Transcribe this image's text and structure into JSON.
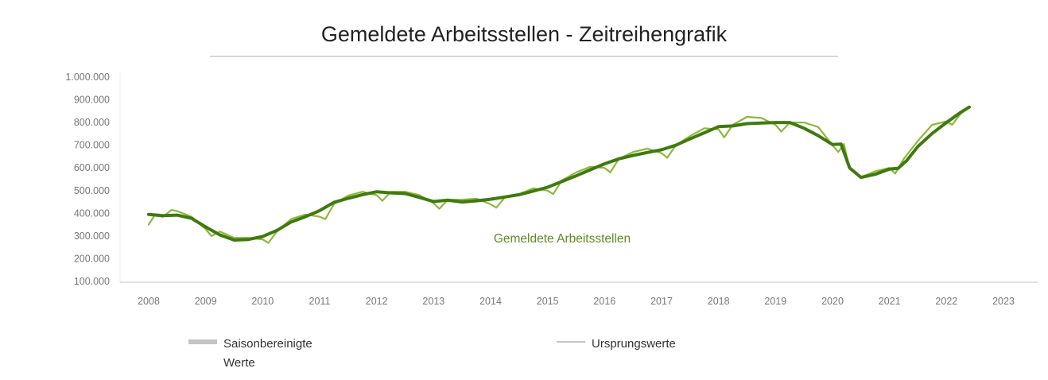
{
  "chart_data": {
    "type": "line",
    "title": "Gemeldete Arbeitsstellen - Zeitreihengrafik",
    "series_label": "Gemeldete Arbeitsstellen",
    "xlabel": "",
    "ylabel": "",
    "xlim": [
      2008,
      2023
    ],
    "ylim": [
      100000,
      1000000
    ],
    "x_ticks": [
      "2008",
      "2009",
      "2010",
      "2011",
      "2012",
      "2013",
      "2014",
      "2015",
      "2016",
      "2017",
      "2018",
      "2019",
      "2020",
      "2021",
      "2022",
      "2023"
    ],
    "y_ticks": [
      "1.000.000",
      "900.000",
      "800.000",
      "700.000",
      "600.000",
      "500.000",
      "400.000",
      "300.000",
      "200.000",
      "100.000"
    ],
    "y_tick_values": [
      1000000,
      900000,
      800000,
      700000,
      600000,
      500000,
      400000,
      300000,
      200000,
      100000
    ],
    "legend_position": "bottom",
    "series": [
      {
        "name": "Saisonbereinigte Werte",
        "color": "#3f7a0f",
        "x": [
          2008.0,
          2008.25,
          2008.5,
          2008.75,
          2009.0,
          2009.25,
          2009.5,
          2009.75,
          2010.0,
          2010.25,
          2010.5,
          2010.75,
          2011.0,
          2011.25,
          2011.5,
          2011.75,
          2012.0,
          2012.25,
          2012.5,
          2012.75,
          2013.0,
          2013.25,
          2013.5,
          2013.75,
          2014.0,
          2014.25,
          2014.5,
          2014.75,
          2015.0,
          2015.25,
          2015.5,
          2015.75,
          2016.0,
          2016.25,
          2016.5,
          2016.75,
          2017.0,
          2017.25,
          2017.5,
          2017.75,
          2018.0,
          2018.25,
          2018.5,
          2018.75,
          2019.0,
          2019.25,
          2019.5,
          2019.75,
          2020.0,
          2020.15,
          2020.3,
          2020.5,
          2020.75,
          2021.0,
          2021.15,
          2021.3,
          2021.5,
          2021.75,
          2022.0,
          2022.25,
          2022.4
        ],
        "values": [
          395000,
          390000,
          392000,
          378000,
          340000,
          305000,
          282000,
          285000,
          298000,
          325000,
          362000,
          385000,
          412000,
          448000,
          466000,
          482000,
          495000,
          490000,
          487000,
          470000,
          452000,
          458000,
          450000,
          455000,
          462000,
          472000,
          482000,
          498000,
          515000,
          540000,
          565000,
          592000,
          618000,
          640000,
          655000,
          668000,
          680000,
          700000,
          728000,
          755000,
          782000,
          785000,
          795000,
          798000,
          800000,
          800000,
          775000,
          742000,
          703000,
          705000,
          600000,
          558000,
          572000,
          595000,
          598000,
          632000,
          695000,
          752000,
          800000,
          845000,
          868000
        ]
      },
      {
        "name": "Ursprungswerte",
        "color": "#8cb83c",
        "x": [
          2008.0,
          2008.1,
          2008.25,
          2008.4,
          2008.5,
          2008.75,
          2009.0,
          2009.1,
          2009.25,
          2009.5,
          2009.75,
          2010.0,
          2010.1,
          2010.25,
          2010.5,
          2010.75,
          2011.0,
          2011.1,
          2011.25,
          2011.5,
          2011.75,
          2012.0,
          2012.1,
          2012.25,
          2012.5,
          2012.75,
          2013.0,
          2013.1,
          2013.25,
          2013.5,
          2013.75,
          2014.0,
          2014.1,
          2014.25,
          2014.5,
          2014.75,
          2015.0,
          2015.1,
          2015.25,
          2015.5,
          2015.75,
          2016.0,
          2016.1,
          2016.25,
          2016.5,
          2016.75,
          2017.0,
          2017.1,
          2017.25,
          2017.5,
          2017.75,
          2018.0,
          2018.1,
          2018.25,
          2018.5,
          2018.75,
          2019.0,
          2019.1,
          2019.25,
          2019.5,
          2019.75,
          2020.0,
          2020.1,
          2020.2,
          2020.3,
          2020.5,
          2020.75,
          2021.0,
          2021.1,
          2021.25,
          2021.5,
          2021.75,
          2022.0,
          2022.1,
          2022.25,
          2022.4
        ],
        "values": [
          350000,
          390000,
          385000,
          415000,
          410000,
          385000,
          330000,
          300000,
          320000,
          292000,
          292000,
          285000,
          270000,
          320000,
          375000,
          395000,
          385000,
          375000,
          440000,
          478000,
          495000,
          480000,
          455000,
          495000,
          495000,
          480000,
          445000,
          420000,
          460000,
          460000,
          465000,
          440000,
          425000,
          470000,
          485000,
          510000,
          500000,
          485000,
          545000,
          580000,
          605000,
          600000,
          580000,
          640000,
          670000,
          685000,
          665000,
          645000,
          700000,
          740000,
          775000,
          770000,
          735000,
          790000,
          825000,
          820000,
          790000,
          760000,
          800000,
          800000,
          780000,
          700000,
          670000,
          705000,
          600000,
          560000,
          585000,
          600000,
          575000,
          640000,
          720000,
          790000,
          805000,
          790000,
          840000,
          868000
        ]
      }
    ]
  },
  "legend": {
    "seasonal_line1": "Saisonbereinigte",
    "seasonal_line2": "Werte",
    "original": "Ursprungswerte"
  }
}
